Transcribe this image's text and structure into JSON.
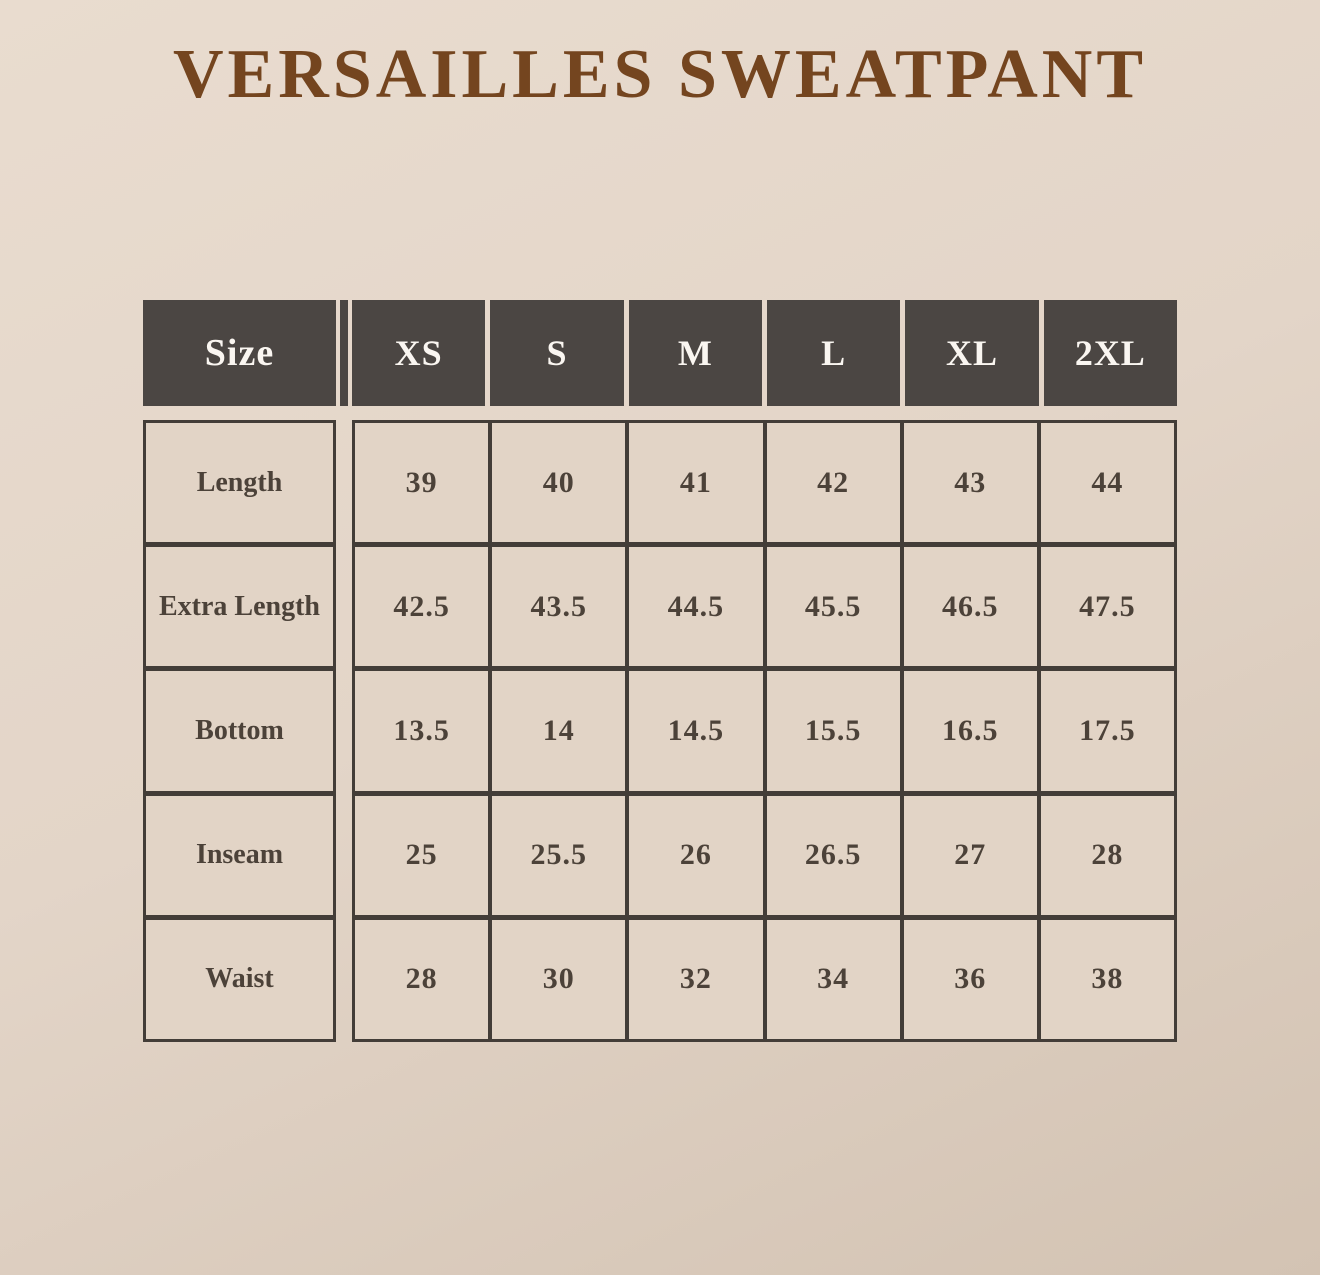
{
  "title": "VERSAILLES SWEATPANT",
  "colors": {
    "background_top": "#e9dccf",
    "background_bottom": "#d3c3b3",
    "header_bg": "#4b4643",
    "header_text": "#faf6f1",
    "grid_line": "#433d38",
    "cell_bg": "#e2d4c6",
    "cell_text": "#4c4239",
    "title_text": "#74451f"
  },
  "chart_data": {
    "type": "table",
    "title": "VERSAILLES SWEATPANT",
    "columns": [
      "Size",
      "XS",
      "S",
      "M",
      "L",
      "XL",
      "2XL"
    ],
    "rows": [
      {
        "label": "Length",
        "values": [
          "39",
          "40",
          "41",
          "42",
          "43",
          "44"
        ]
      },
      {
        "label": "Extra Length",
        "values": [
          "42.5",
          "43.5",
          "44.5",
          "45.5",
          "46.5",
          "47.5"
        ]
      },
      {
        "label": "Bottom",
        "values": [
          "13.5",
          "14",
          "14.5",
          "15.5",
          "16.5",
          "17.5"
        ]
      },
      {
        "label": "Inseam",
        "values": [
          "25",
          "25.5",
          "26",
          "26.5",
          "27",
          "28"
        ]
      },
      {
        "label": "Waist",
        "values": [
          "28",
          "30",
          "32",
          "34",
          "36",
          "38"
        ]
      }
    ]
  }
}
